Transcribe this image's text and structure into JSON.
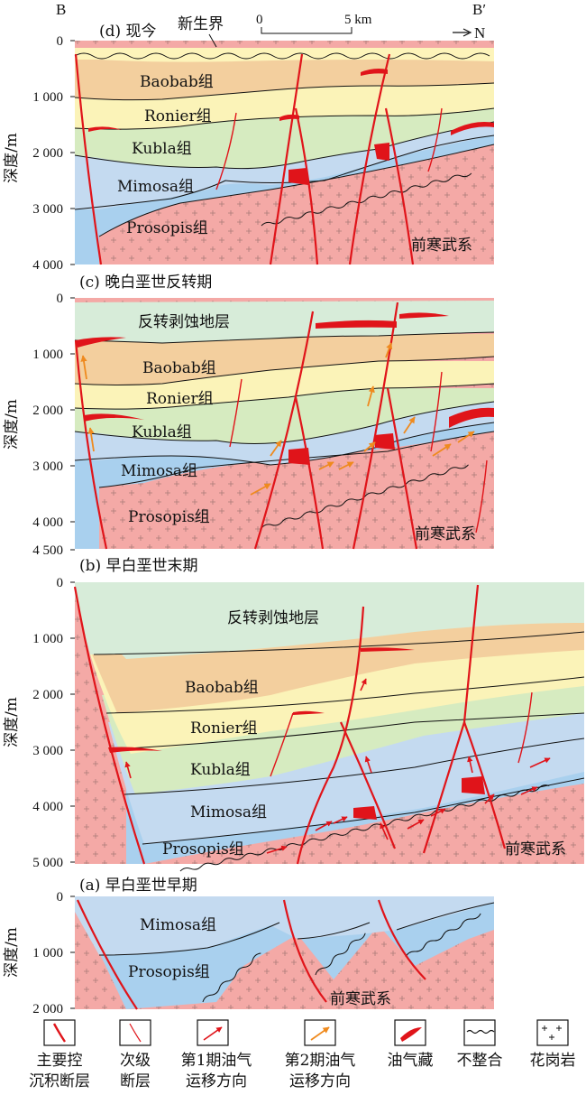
{
  "panels": {
    "d": {
      "title": "(d) 现今",
      "surface_label": "新生界",
      "depth_ticks": [
        "0",
        "1 000",
        "2 000",
        "3 000",
        "4 000"
      ],
      "units": [
        "Baobab组",
        "Ronier组",
        "Kubla组",
        "Mimosa组",
        "Prosopis组"
      ],
      "basement_label": "前寒武系"
    },
    "c": {
      "title": "(c) 晚白垩世反转期",
      "depth_ticks": [
        "0",
        "1 000",
        "2 000",
        "3 000",
        "4 000",
        "4 500"
      ],
      "units": [
        "反转剥蚀地层",
        "Baobab组",
        "Ronier组",
        "Kubla组",
        "Mimosa组",
        "Prosopis组"
      ],
      "basement_label": "前寒武系"
    },
    "b": {
      "title": "(b) 早白垩世末期",
      "depth_ticks": [
        "0",
        "1 000",
        "2 000",
        "3 000",
        "4 000",
        "5 000"
      ],
      "units": [
        "反转剥蚀地层",
        "Baobab组",
        "Ronier组",
        "Kubla组",
        "Mimosa组",
        "Prosopis组"
      ],
      "basement_label": "前寒武系"
    },
    "a": {
      "title": "(a) 早白垩世早期",
      "depth_ticks": [
        "0",
        "1 000",
        "2 000"
      ],
      "units": [
        "Mimosa组",
        "Prosopis组"
      ],
      "basement_label": "前寒武系"
    }
  },
  "section": {
    "start": "B",
    "end": "B′",
    "north": "N",
    "scale_start": "0",
    "scale_end": "5 km"
  },
  "y_axis_label": "深度/m",
  "legend": [
    {
      "icon": "major-fault",
      "label_1": "主要控",
      "label_2": "沉积断层"
    },
    {
      "icon": "minor-fault",
      "label_1": "次级",
      "label_2": "断层"
    },
    {
      "icon": "migration-1",
      "label_1": "第1期油气",
      "label_2": "运移方向"
    },
    {
      "icon": "migration-2",
      "label_1": "第2期油气",
      "label_2": "运移方向"
    },
    {
      "icon": "reservoir",
      "label_1": "油气藏",
      "label_2": ""
    },
    {
      "icon": "unconformity",
      "label_1": "不整合",
      "label_2": ""
    },
    {
      "icon": "granite",
      "label_1": "花岗岩",
      "label_2": ""
    }
  ],
  "colors": {
    "baobab": "#f3cf9e",
    "ronier": "#fbf3b8",
    "kubla": "#d6ebc0",
    "mimosa": "#c4daf0",
    "prosopis": "#a9d0ee",
    "basement": "#f4a9a6",
    "eroded": "#d7ecd9",
    "cenozoic": "#fdf4ba",
    "fault": "#e0141a",
    "migration2": "#ef8a1e"
  }
}
